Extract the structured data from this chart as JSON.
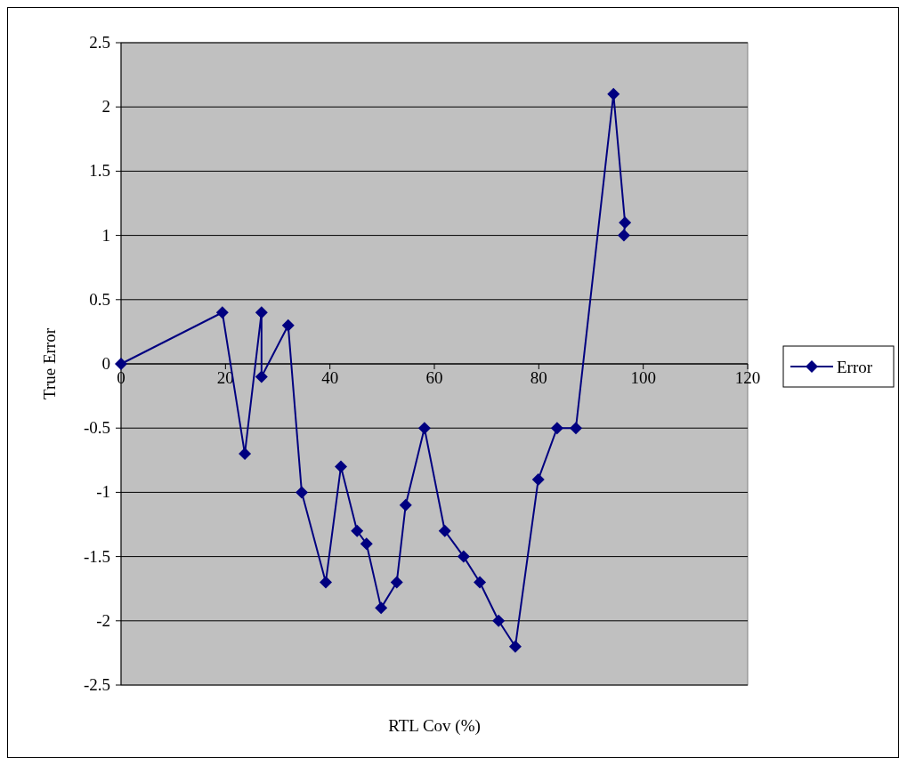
{
  "chart_data": {
    "type": "line",
    "xlabel": "RTL Cov (%)",
    "ylabel": "True Error",
    "xlim": [
      0,
      120
    ],
    "xticks": [
      0,
      20,
      40,
      60,
      80,
      100,
      120
    ],
    "ylim": [
      -2.5,
      2.5
    ],
    "yticks": [
      -2.5,
      -2,
      -1.5,
      -1,
      -0.5,
      0,
      0.5,
      1,
      1.5,
      2,
      2.5
    ],
    "grid": "y",
    "legend": "right",
    "marker": "diamond",
    "x": [
      0,
      19.4,
      23.7,
      26.9,
      26.9,
      32.0,
      34.6,
      39.2,
      42.1,
      45.2,
      47.0,
      49.8,
      52.8,
      54.5,
      58.1,
      62.0,
      65.6,
      68.7,
      72.3,
      75.5,
      79.9,
      83.5,
      87.1,
      94.3,
      96.5,
      96.3
    ],
    "series": [
      {
        "name": "Error",
        "color": "#000080",
        "values": [
          0,
          0.4,
          -0.7,
          0.4,
          -0.1,
          0.3,
          -1.0,
          -1.7,
          -0.8,
          -1.3,
          -1.4,
          -1.9,
          -1.7,
          -1.1,
          -0.5,
          -1.3,
          -1.5,
          -1.7,
          -2.0,
          -2.2,
          -0.9,
          -0.5,
          -0.5,
          2.1,
          1.1,
          1.0
        ]
      }
    ]
  }
}
